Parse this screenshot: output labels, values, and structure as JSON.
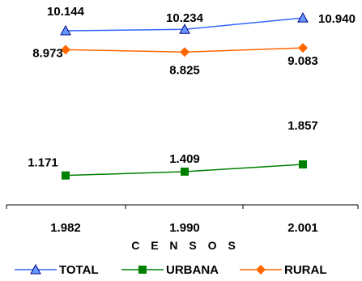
{
  "chart_data": {
    "type": "line",
    "categories": [
      "1.982",
      "1.990",
      "2.001"
    ],
    "xlabel": "C E N S O S",
    "ylabel": "",
    "title": "",
    "series": [
      {
        "name": "TOTAL",
        "values": [
          10144,
          10234,
          10940
        ],
        "labels": [
          "10.144",
          "10.234",
          "10.940"
        ],
        "color": "#3366ff",
        "marker": "triangle-icon"
      },
      {
        "name": "URBANA",
        "values": [
          1171,
          1409,
          1857
        ],
        "labels": [
          "1.171",
          "1.409",
          "1.857"
        ],
        "color": "#008000",
        "marker": "square-icon"
      },
      {
        "name": "RURAL",
        "values": [
          8973,
          8825,
          9083
        ],
        "labels": [
          "8.973",
          "8.825",
          "9.083"
        ],
        "color": "#ff6600",
        "marker": "diamond-icon"
      }
    ],
    "ylim": [
      0,
      11200
    ],
    "grid": false,
    "legend": "bottom"
  }
}
